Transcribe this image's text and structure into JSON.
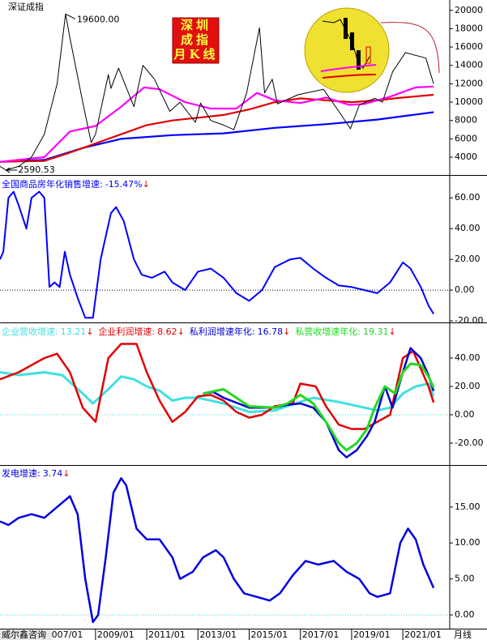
{
  "chart_data": [
    {
      "type": "line",
      "title": "深证成指",
      "xlim": [
        2005.27,
        2022.83
      ],
      "ylim": [
        2150,
        20950
      ],
      "yticks": [
        4000,
        6000,
        8000,
        10000,
        12000,
        14000,
        16000,
        18000,
        20000
      ],
      "stamp": [
        "深圳",
        "成指",
        "月K线"
      ],
      "annotations": [
        {
          "x": 2007.83,
          "value": 19600,
          "label": "19600.00"
        },
        {
          "x": 2005.5,
          "value": 2590.53,
          "label": "2590.53"
        }
      ],
      "series": [
        {
          "color": "#0000ff",
          "width": 2.2,
          "x": [
            2005.27,
            2007,
            2008.5,
            2010,
            2012,
            2014,
            2016,
            2018,
            2020,
            2022.2
          ],
          "values": [
            3500,
            3700,
            5000,
            6000,
            6400,
            6600,
            7200,
            7600,
            8100,
            8900
          ]
        },
        {
          "color": "#e00000",
          "width": 2.2,
          "x": [
            2005.27,
            2007,
            2008,
            2009,
            2010,
            2011,
            2012,
            2013,
            2014,
            2015,
            2016,
            2017,
            2018,
            2019,
            2020,
            2021,
            2022.2
          ],
          "values": [
            3500,
            3600,
            4500,
            5500,
            6500,
            7500,
            8000,
            8300,
            8600,
            9200,
            10000,
            10400,
            10200,
            10000,
            10200,
            10500,
            10800
          ]
        },
        {
          "color": "#ff00ff",
          "width": 2.2,
          "x": [
            2005.27,
            2007,
            2008,
            2009,
            2010,
            2010.9,
            2011.5,
            2012.5,
            2013.5,
            2014.5,
            2015.3,
            2016,
            2017,
            2018,
            2018.9,
            2019.5,
            2020.5,
            2021.5,
            2022.2
          ],
          "values": [
            3500,
            4000,
            6800,
            7400,
            9500,
            11600,
            11400,
            10000,
            9300,
            9300,
            11000,
            10200,
            9900,
            10500,
            9700,
            9800,
            10600,
            11600,
            11700
          ]
        },
        {
          "color": "#000000",
          "width": 1,
          "x": [
            2005.27,
            2005.5,
            2006.0,
            2006.5,
            2007.0,
            2007.5,
            2007.83,
            2008.0,
            2008.5,
            2008.83,
            2009.0,
            2009.5,
            2009.6,
            2009.9,
            2010.5,
            2010.85,
            2011.3,
            2011.9,
            2012.3,
            2012.9,
            2013.1,
            2013.5,
            2014.0,
            2014.4,
            2014.9,
            2015.4,
            2015.6,
            2015.9,
            2016.1,
            2016.9,
            2017.9,
            2018.5,
            2018.95,
            2019.3,
            2019.9,
            2020.2,
            2020.6,
            2021.1,
            2021.9,
            2022.2
          ],
          "values": [
            3000,
            2590.53,
            3000,
            4000,
            6500,
            12000,
            19600,
            17000,
            10000,
            5600,
            6500,
            13000,
            11500,
            13700,
            9500,
            14000,
            12500,
            9000,
            10000,
            7800,
            9900,
            8000,
            7500,
            7000,
            11000,
            18100,
            11000,
            12500,
            9800,
            10800,
            11400,
            9000,
            7100,
            9700,
            10400,
            10000,
            13300,
            15400,
            14800,
            12000
          ]
        }
      ]
    },
    {
      "type": "line",
      "xlim": [
        2005.27,
        2022.83
      ],
      "ylim": [
        -21,
        73.8
      ],
      "yticks": [
        {
          "value": -20,
          "label": "-20.00"
        },
        {
          "value": 0,
          "label": "0.00"
        },
        {
          "value": 20,
          "label": "20.00"
        },
        {
          "value": 40,
          "label": "40.00"
        },
        {
          "value": 60,
          "label": "60.00"
        }
      ],
      "zero_line": "#000000",
      "series": [
        {
          "name": "全国商品房年化销售增速:",
          "color": "#0000ff",
          "width": 2,
          "readout": "-15.47%",
          "trend": "↓",
          "x": [
            2005.27,
            2005.4,
            2005.6,
            2005.8,
            2006.0,
            2006.3,
            2006.5,
            2006.8,
            2007.0,
            2007.2,
            2007.4,
            2007.6,
            2007.8,
            2008.0,
            2008.3,
            2008.6,
            2008.9,
            2009.2,
            2009.6,
            2009.8,
            2010.1,
            2010.5,
            2010.8,
            2011.2,
            2011.7,
            2012.0,
            2012.5,
            2013.0,
            2013.5,
            2014.0,
            2014.5,
            2015.0,
            2015.5,
            2016.0,
            2016.6,
            2017.0,
            2017.5,
            2018.0,
            2018.5,
            2019.0,
            2019.5,
            2020.0,
            2020.5,
            2021.0,
            2021.3,
            2021.7,
            2022.0,
            2022.2
          ],
          "values": [
            20,
            25,
            60,
            64,
            55,
            40,
            60,
            64,
            60,
            2,
            5,
            2,
            25,
            10,
            -5,
            -18,
            -18,
            20,
            50,
            54,
            45,
            20,
            10,
            8,
            12,
            5,
            0,
            12,
            14,
            8,
            -2,
            -7,
            0,
            15,
            20,
            21,
            14,
            8,
            3,
            2,
            0,
            -2,
            5,
            18,
            14,
            2,
            -10,
            -15.47
          ]
        }
      ]
    },
    {
      "type": "line",
      "xlim": [
        2005.27,
        2022.83
      ],
      "ylim": [
        -34.3,
        64
      ],
      "yticks": [
        {
          "value": -20,
          "label": "-20.00"
        },
        {
          "value": 0,
          "label": "0.00"
        },
        {
          "value": 20,
          "label": "20.00"
        },
        {
          "value": 40,
          "label": "40.00"
        }
      ],
      "zero_line": "#40d0d0",
      "series": [
        {
          "name": "企业营收增速:",
          "color": "#40e0e0",
          "width": 3,
          "trend": "↓",
          "x": [
            2005.27,
            2006,
            2007,
            2007.7,
            2008.5,
            2008.9,
            2009.5,
            2010,
            2010.5,
            2011,
            2011.5,
            2012,
            2012.5,
            2013,
            2014,
            2015,
            2016,
            2016.8,
            2017.5,
            2018.5,
            2019.5,
            2020,
            2020.5,
            2021,
            2021.5,
            2022,
            2022.2
          ],
          "values": [
            30,
            28,
            30,
            28,
            15,
            8,
            18,
            27,
            25,
            20,
            17,
            10,
            12,
            12,
            8,
            2,
            3,
            8,
            12,
            9,
            5,
            3,
            5,
            15,
            20,
            22,
            13.21
          ]
        },
        {
          "name": "企业利润增速:",
          "color": "#e00000",
          "width": 2.5,
          "trend": "↓",
          "x": [
            2005.27,
            2006,
            2006.5,
            2007,
            2007.5,
            2008,
            2008.5,
            2009,
            2009.5,
            2010,
            2010.6,
            2011,
            2011.5,
            2012,
            2012.5,
            2013,
            2013.5,
            2014,
            2014.5,
            2015,
            2015.5,
            2016,
            2016.7,
            2017,
            2017.6,
            2018,
            2018.5,
            2019,
            2019.5,
            2020,
            2020.5,
            2021,
            2021.4,
            2022,
            2022.2
          ],
          "values": [
            25,
            30,
            35,
            40,
            43,
            30,
            5,
            -5,
            40,
            50,
            50,
            30,
            10,
            -5,
            2,
            13,
            14,
            10,
            2,
            -2,
            0,
            6,
            8,
            22,
            20,
            6,
            -7,
            -10,
            -10,
            -5,
            0,
            40,
            45,
            20,
            8.62
          ]
        },
        {
          "name": "私利润增速年化:",
          "color": "#0000d0",
          "width": 2.5,
          "trend": "↓",
          "x": [
            2013.2,
            2013.6,
            2014,
            2015,
            2016,
            2016.5,
            2017,
            2017.5,
            2018,
            2018.5,
            2018.8,
            2019.2,
            2019.6,
            2019.9,
            2020.3,
            2020.6,
            2021,
            2021.3,
            2021.7,
            2022,
            2022.2
          ],
          "values": [
            15,
            16,
            12,
            5,
            5,
            7,
            8,
            5,
            -5,
            -25,
            -30,
            -25,
            -15,
            -5,
            20,
            5,
            30,
            47,
            40,
            28,
            16.78
          ]
        },
        {
          "name": "私营收增速年化:",
          "color": "#20d820",
          "width": 3,
          "trend": "↓",
          "x": [
            2013.2,
            2014,
            2015,
            2016,
            2016.5,
            2017,
            2017.5,
            2018,
            2018.5,
            2018.8,
            2019.2,
            2019.6,
            2019.9,
            2020.3,
            2020.7,
            2021,
            2021.3,
            2021.7,
            2022,
            2022.2
          ],
          "values": [
            15,
            18,
            6,
            5,
            8,
            14,
            8,
            -5,
            -20,
            -25,
            -20,
            -10,
            5,
            20,
            15,
            30,
            36,
            35,
            27,
            19.31
          ]
        }
      ]
    },
    {
      "type": "line",
      "xlim": [
        2005.27,
        2022.83
      ],
      "ylim": [
        -1.8,
        20.5
      ],
      "yticks": [
        {
          "value": 0,
          "label": "0.00"
        },
        {
          "value": 5,
          "label": "5.00"
        },
        {
          "value": 10,
          "label": "10.00"
        },
        {
          "value": 15,
          "label": "15.00"
        }
      ],
      "zero_line": "#40d0d0",
      "xticks": [
        {
          "value": 2007,
          "label": "2007/01"
        },
        {
          "value": 2009,
          "label": "2009/01"
        },
        {
          "value": 2011,
          "label": "2011/01"
        },
        {
          "value": 2013,
          "label": "2013/01"
        },
        {
          "value": 2015,
          "label": "2015/01"
        },
        {
          "value": 2017,
          "label": "2017/01"
        },
        {
          "value": 2019,
          "label": "2019/01"
        },
        {
          "value": 2021,
          "label": "2021/01"
        }
      ],
      "series": [
        {
          "name": "发电增速:",
          "color": "#0000e0",
          "width": 2.5,
          "trend": "↓",
          "x": [
            2005.27,
            2005.6,
            2006,
            2006.5,
            2007,
            2007.5,
            2008,
            2008.3,
            2008.6,
            2008.9,
            2009.1,
            2009.4,
            2009.7,
            2010,
            2010.2,
            2010.6,
            2011,
            2011.5,
            2012,
            2012.3,
            2012.8,
            2013.2,
            2013.7,
            2014,
            2014.4,
            2014.8,
            2015.3,
            2015.8,
            2016.2,
            2016.7,
            2017.2,
            2017.7,
            2018.3,
            2018.8,
            2019.3,
            2019.7,
            2020,
            2020.5,
            2020.9,
            2021.2,
            2021.5,
            2021.8,
            2022.2
          ],
          "values": [
            13,
            12.5,
            13.5,
            14,
            13.5,
            15,
            16.5,
            14,
            5,
            -1,
            0,
            8,
            17,
            19,
            18,
            12,
            10.5,
            10.5,
            8,
            5,
            6,
            8,
            9,
            8,
            5,
            3,
            2.5,
            2,
            3,
            5.5,
            7.5,
            7,
            7.5,
            6,
            5,
            3,
            2.5,
            3,
            10,
            12,
            10.5,
            7,
            3.74
          ]
        }
      ]
    }
  ],
  "footer": {
    "source": "威尔鑫咨询",
    "period": "月线"
  }
}
